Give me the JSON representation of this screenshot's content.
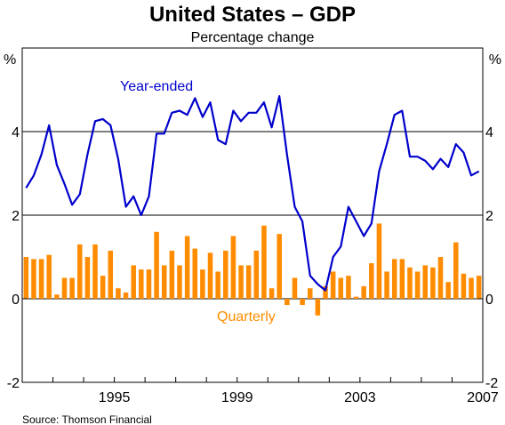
{
  "chart_data": {
    "type": "bar+line",
    "title": "United States – GDP",
    "subtitle": "Percentage change",
    "unit_left": "%",
    "unit_right": "%",
    "source": "Source: Thomson Financial",
    "ylim": [
      -2,
      6
    ],
    "yticks": [
      -2,
      0,
      2,
      4
    ],
    "xlim": [
      1992.0,
      2007.0
    ],
    "xticks": [
      1995,
      1999,
      2003,
      2007
    ],
    "grid": true,
    "series": [
      {
        "name": "Year-ended",
        "type": "line",
        "color": "#0000cc",
        "start": 1992.0,
        "step": 0.25,
        "values": [
          2.65,
          2.95,
          3.45,
          4.15,
          3.2,
          2.75,
          2.25,
          2.5,
          3.45,
          4.25,
          4.3,
          4.15,
          3.35,
          2.2,
          2.45,
          2.0,
          2.45,
          3.95,
          3.95,
          4.45,
          4.5,
          4.4,
          4.8,
          4.35,
          4.7,
          3.8,
          3.7,
          4.5,
          4.25,
          4.45,
          4.45,
          4.7,
          4.1,
          4.85,
          3.45,
          2.2,
          1.85,
          0.55,
          0.35,
          0.2,
          1.0,
          1.25,
          2.2,
          1.85,
          1.5,
          1.8,
          3.05,
          3.7,
          4.4,
          4.5,
          3.4,
          3.4,
          3.3,
          3.1,
          3.35,
          3.15,
          3.7,
          3.5,
          2.95,
          3.05
        ]
      },
      {
        "name": "Quarterly",
        "type": "bar",
        "color": "#ff8c00",
        "start": 1992.0,
        "step": 0.25,
        "values": [
          1.0,
          0.95,
          0.95,
          1.05,
          0.1,
          0.5,
          0.5,
          1.3,
          1.0,
          1.3,
          0.55,
          1.15,
          0.25,
          0.15,
          0.8,
          0.7,
          0.7,
          1.6,
          0.8,
          1.15,
          0.8,
          1.5,
          1.2,
          0.7,
          1.1,
          0.65,
          1.15,
          1.5,
          0.8,
          0.8,
          1.15,
          1.75,
          0.25,
          1.55,
          -0.15,
          0.5,
          -0.15,
          0.25,
          -0.4,
          0.3,
          0.65,
          0.5,
          0.55,
          0.05,
          0.3,
          0.85,
          1.8,
          0.65,
          0.95,
          0.95,
          0.75,
          0.65,
          0.8,
          0.75,
          1.0,
          0.4,
          1.35,
          0.6,
          0.5,
          0.55
        ]
      }
    ],
    "annotations": [
      {
        "text": "Year-ended",
        "series": "Year-ended"
      },
      {
        "text": "Quarterly",
        "series": "Quarterly"
      }
    ]
  }
}
